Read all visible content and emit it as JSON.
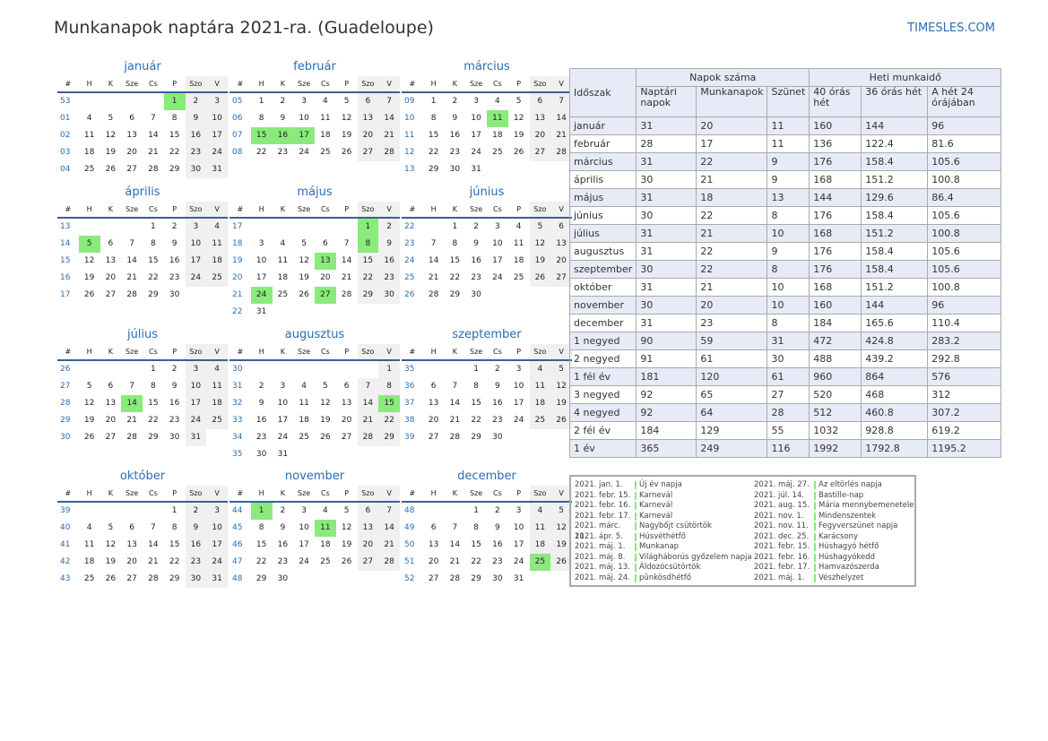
{
  "title": "Munkanapok naptára 2021-ra. (Guadeloupe)",
  "site": "TIMESLES.COM",
  "weekday_headers": [
    "#",
    "H",
    "K",
    "Sze",
    "Cs",
    "P",
    "Szo",
    "V"
  ],
  "months": [
    {
      "name": "január",
      "weeks": [
        [
          "53",
          "",
          "",
          "",
          "",
          "1",
          "2",
          "3"
        ],
        [
          "01",
          "4",
          "5",
          "6",
          "7",
          "8",
          "9",
          "10"
        ],
        [
          "02",
          "11",
          "12",
          "13",
          "14",
          "15",
          "16",
          "17"
        ],
        [
          "03",
          "18",
          "19",
          "20",
          "21",
          "22",
          "23",
          "24"
        ],
        [
          "04",
          "25",
          "26",
          "27",
          "28",
          "29",
          "30",
          "31"
        ]
      ],
      "holidays": [
        "1"
      ]
    },
    {
      "name": "február",
      "weeks": [
        [
          "05",
          "1",
          "2",
          "3",
          "4",
          "5",
          "6",
          "7"
        ],
        [
          "06",
          "8",
          "9",
          "10",
          "11",
          "12",
          "13",
          "14"
        ],
        [
          "07",
          "15",
          "16",
          "17",
          "18",
          "19",
          "20",
          "21"
        ],
        [
          "08",
          "22",
          "23",
          "24",
          "25",
          "26",
          "27",
          "28"
        ]
      ],
      "holidays": [
        "15",
        "16",
        "17"
      ]
    },
    {
      "name": "március",
      "weeks": [
        [
          "09",
          "1",
          "2",
          "3",
          "4",
          "5",
          "6",
          "7"
        ],
        [
          "10",
          "8",
          "9",
          "10",
          "11",
          "12",
          "13",
          "14"
        ],
        [
          "11",
          "15",
          "16",
          "17",
          "18",
          "19",
          "20",
          "21"
        ],
        [
          "12",
          "22",
          "23",
          "24",
          "25",
          "26",
          "27",
          "28"
        ],
        [
          "13",
          "29",
          "30",
          "31",
          "",
          "",
          "",
          ""
        ]
      ],
      "holidays": [
        "11"
      ]
    },
    {
      "name": "április",
      "weeks": [
        [
          "13",
          "",
          "",
          "",
          "1",
          "2",
          "3",
          "4"
        ],
        [
          "14",
          "5",
          "6",
          "7",
          "8",
          "9",
          "10",
          "11"
        ],
        [
          "15",
          "12",
          "13",
          "14",
          "15",
          "16",
          "17",
          "18"
        ],
        [
          "16",
          "19",
          "20",
          "21",
          "22",
          "23",
          "24",
          "25"
        ],
        [
          "17",
          "26",
          "27",
          "28",
          "29",
          "30",
          "",
          ""
        ]
      ],
      "holidays": [
        "5"
      ]
    },
    {
      "name": "május",
      "weeks": [
        [
          "17",
          "",
          "",
          "",
          "",
          "",
          "1",
          "2"
        ],
        [
          "18",
          "3",
          "4",
          "5",
          "6",
          "7",
          "8",
          "9"
        ],
        [
          "19",
          "10",
          "11",
          "12",
          "13",
          "14",
          "15",
          "16"
        ],
        [
          "20",
          "17",
          "18",
          "19",
          "20",
          "21",
          "22",
          "23"
        ],
        [
          "21",
          "24",
          "25",
          "26",
          "27",
          "28",
          "29",
          "30"
        ],
        [
          "22",
          "31",
          "",
          "",
          "",
          "",
          "",
          ""
        ]
      ],
      "holidays": [
        "1",
        "8",
        "13",
        "24",
        "27"
      ]
    },
    {
      "name": "június",
      "weeks": [
        [
          "22",
          "",
          "1",
          "2",
          "3",
          "4",
          "5",
          "6"
        ],
        [
          "23",
          "7",
          "8",
          "9",
          "10",
          "11",
          "12",
          "13"
        ],
        [
          "24",
          "14",
          "15",
          "16",
          "17",
          "18",
          "19",
          "20"
        ],
        [
          "25",
          "21",
          "22",
          "23",
          "24",
          "25",
          "26",
          "27"
        ],
        [
          "26",
          "28",
          "29",
          "30",
          "",
          "",
          "",
          ""
        ]
      ],
      "holidays": []
    },
    {
      "name": "július",
      "weeks": [
        [
          "26",
          "",
          "",
          "",
          "1",
          "2",
          "3",
          "4"
        ],
        [
          "27",
          "5",
          "6",
          "7",
          "8",
          "9",
          "10",
          "11"
        ],
        [
          "28",
          "12",
          "13",
          "14",
          "15",
          "16",
          "17",
          "18"
        ],
        [
          "29",
          "19",
          "20",
          "21",
          "22",
          "23",
          "24",
          "25"
        ],
        [
          "30",
          "26",
          "27",
          "28",
          "29",
          "30",
          "31",
          ""
        ]
      ],
      "holidays": [
        "14"
      ]
    },
    {
      "name": "augusztus",
      "weeks": [
        [
          "30",
          "",
          "",
          "",
          "",
          "",
          "",
          "1"
        ],
        [
          "31",
          "2",
          "3",
          "4",
          "5",
          "6",
          "7",
          "8"
        ],
        [
          "32",
          "9",
          "10",
          "11",
          "12",
          "13",
          "14",
          "15"
        ],
        [
          "33",
          "16",
          "17",
          "18",
          "19",
          "20",
          "21",
          "22"
        ],
        [
          "34",
          "23",
          "24",
          "25",
          "26",
          "27",
          "28",
          "29"
        ],
        [
          "35",
          "30",
          "31",
          "",
          "",
          "",
          "",
          ""
        ]
      ],
      "holidays": [
        "15"
      ]
    },
    {
      "name": "szeptember",
      "weeks": [
        [
          "35",
          "",
          "",
          "1",
          "2",
          "3",
          "4",
          "5"
        ],
        [
          "36",
          "6",
          "7",
          "8",
          "9",
          "10",
          "11",
          "12"
        ],
        [
          "37",
          "13",
          "14",
          "15",
          "16",
          "17",
          "18",
          "19"
        ],
        [
          "38",
          "20",
          "21",
          "22",
          "23",
          "24",
          "25",
          "26"
        ],
        [
          "39",
          "27",
          "28",
          "29",
          "30",
          "",
          "",
          ""
        ]
      ],
      "holidays": []
    },
    {
      "name": "október",
      "weeks": [
        [
          "39",
          "",
          "",
          "",
          "",
          "1",
          "2",
          "3"
        ],
        [
          "40",
          "4",
          "5",
          "6",
          "7",
          "8",
          "9",
          "10"
        ],
        [
          "41",
          "11",
          "12",
          "13",
          "14",
          "15",
          "16",
          "17"
        ],
        [
          "42",
          "18",
          "19",
          "20",
          "21",
          "22",
          "23",
          "24"
        ],
        [
          "43",
          "25",
          "26",
          "27",
          "28",
          "29",
          "30",
          "31"
        ]
      ],
      "holidays": []
    },
    {
      "name": "november",
      "weeks": [
        [
          "44",
          "1",
          "2",
          "3",
          "4",
          "5",
          "6",
          "7"
        ],
        [
          "45",
          "8",
          "9",
          "10",
          "11",
          "12",
          "13",
          "14"
        ],
        [
          "46",
          "15",
          "16",
          "17",
          "18",
          "19",
          "20",
          "21"
        ],
        [
          "47",
          "22",
          "23",
          "24",
          "25",
          "26",
          "27",
          "28"
        ],
        [
          "48",
          "29",
          "30",
          "",
          "",
          "",
          "",
          ""
        ]
      ],
      "holidays": [
        "1",
        "11"
      ]
    },
    {
      "name": "december",
      "weeks": [
        [
          "48",
          "",
          "",
          "1",
          "2",
          "3",
          "4",
          "5"
        ],
        [
          "49",
          "6",
          "7",
          "8",
          "9",
          "10",
          "11",
          "12"
        ],
        [
          "50",
          "13",
          "14",
          "15",
          "16",
          "17",
          "18",
          "19"
        ],
        [
          "51",
          "20",
          "21",
          "22",
          "23",
          "24",
          "25",
          "26"
        ],
        [
          "52",
          "27",
          "28",
          "29",
          "30",
          "31",
          "",
          ""
        ]
      ],
      "holidays": [
        "25"
      ]
    }
  ],
  "stats": {
    "h_period": "Időszak",
    "h_days": "Napok száma",
    "h_hours": "Heti munkaidő",
    "h_cal": "Naptári napok",
    "h_work": "Munkanapok",
    "h_off": "Szünet",
    "h_40": "40 órás hét",
    "h_36": "36 órás hét",
    "h_24": "A hét 24 órájában",
    "rows": [
      [
        "január",
        "31",
        "20",
        "11",
        "160",
        "144",
        "96"
      ],
      [
        "február",
        "28",
        "17",
        "11",
        "136",
        "122.4",
        "81.6"
      ],
      [
        "március",
        "31",
        "22",
        "9",
        "176",
        "158.4",
        "105.6"
      ],
      [
        "április",
        "30",
        "21",
        "9",
        "168",
        "151.2",
        "100.8"
      ],
      [
        "május",
        "31",
        "18",
        "13",
        "144",
        "129.6",
        "86.4"
      ],
      [
        "június",
        "30",
        "22",
        "8",
        "176",
        "158.4",
        "105.6"
      ],
      [
        "július",
        "31",
        "21",
        "10",
        "168",
        "151.2",
        "100.8"
      ],
      [
        "augusztus",
        "31",
        "22",
        "9",
        "176",
        "158.4",
        "105.6"
      ],
      [
        "szeptember",
        "30",
        "22",
        "8",
        "176",
        "158.4",
        "105.6"
      ],
      [
        "október",
        "31",
        "21",
        "10",
        "168",
        "151.2",
        "100.8"
      ],
      [
        "november",
        "30",
        "20",
        "10",
        "160",
        "144",
        "96"
      ],
      [
        "december",
        "31",
        "23",
        "8",
        "184",
        "165.6",
        "110.4"
      ],
      [
        "1 negyed",
        "90",
        "59",
        "31",
        "472",
        "424.8",
        "283.2"
      ],
      [
        "2 negyed",
        "91",
        "61",
        "30",
        "488",
        "439.2",
        "292.8"
      ],
      [
        "1 fél év",
        "181",
        "120",
        "61",
        "960",
        "864",
        "576"
      ],
      [
        "3 negyed",
        "92",
        "65",
        "27",
        "520",
        "468",
        "312"
      ],
      [
        "4 negyed",
        "92",
        "64",
        "28",
        "512",
        "460.8",
        "307.2"
      ],
      [
        "2 fél év",
        "184",
        "129",
        "55",
        "1032",
        "928.8",
        "619.2"
      ],
      [
        "1 év",
        "365",
        "249",
        "116",
        "1992",
        "1792.8",
        "1195.2"
      ]
    ]
  },
  "holiday_list_left": [
    [
      "2021. jan. 1.",
      "Új év napja"
    ],
    [
      "2021. febr. 15.",
      "Karnevál"
    ],
    [
      "2021. febr. 16.",
      "Karnevál"
    ],
    [
      "2021. febr. 17.",
      "Karnevál"
    ],
    [
      "2021. márc. 11.",
      "Nagybőjt csütörtök"
    ],
    [
      "2021. ápr. 5.",
      "Húsvéthétfő"
    ],
    [
      "2021. máj. 1.",
      "Munkanap"
    ],
    [
      "2021. máj. 8.",
      "Világháborús győzelem napja"
    ],
    [
      "2021. máj. 13.",
      "Áldozócsütörtök"
    ],
    [
      "2021. máj. 24.",
      "pünkösdhétfő"
    ]
  ],
  "holiday_list_right": [
    [
      "2021. máj. 27.",
      "Az eltörlés napja"
    ],
    [
      "2021. júl. 14.",
      "Bastille-nap"
    ],
    [
      "2021. aug. 15.",
      "Mária mennybemenetele"
    ],
    [
      "2021. nov. 1.",
      "Mindenszentek"
    ],
    [
      "2021. nov. 11.",
      "Fegyverszünet napja"
    ],
    [
      "2021. dec. 25.",
      "Karácsony"
    ],
    [
      "2021. febr. 15.",
      "Húshagyó hétfő"
    ],
    [
      "2021. febr. 16.",
      "Húshagyókedd"
    ],
    [
      "2021. febr. 17.",
      "Hamvazószerda"
    ],
    [
      "2021. máj. 1.",
      "Vészhelyzet"
    ]
  ]
}
